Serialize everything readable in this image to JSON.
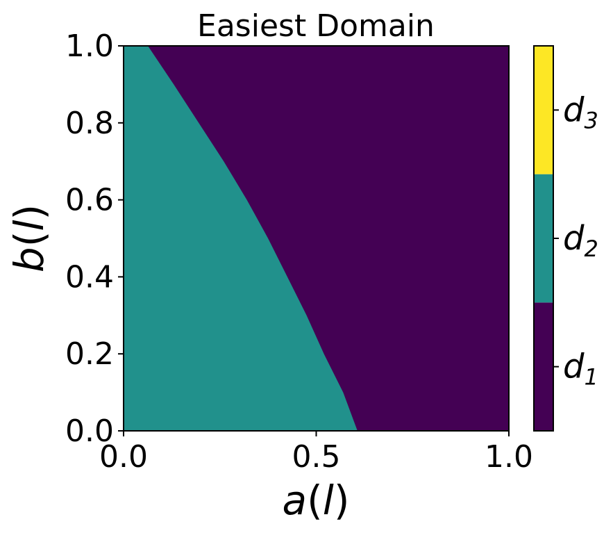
{
  "chart_data": {
    "type": "heatmap",
    "title": "Easiest Domain",
    "xlabel": "a(l)",
    "ylabel": "b(l)",
    "xlim": [
      0,
      1
    ],
    "ylim": [
      0,
      1
    ],
    "x_ticks": [
      {
        "value": 0,
        "label": "0.0"
      },
      {
        "value": 0.5,
        "label": "0.5"
      },
      {
        "value": 1,
        "label": "1.0"
      }
    ],
    "y_ticks": [
      {
        "value": 0,
        "label": "0.0"
      },
      {
        "value": 0.2,
        "label": "0.2"
      },
      {
        "value": 0.4,
        "label": "0.4"
      },
      {
        "value": 0.6,
        "label": "0.6"
      },
      {
        "value": 0.8,
        "label": "0.8"
      },
      {
        "value": 1,
        "label": "1.0"
      }
    ],
    "regions": [
      {
        "name": "d2",
        "color": "#21918c"
      },
      {
        "name": "d1",
        "color": "#440154"
      }
    ],
    "boundary": [
      {
        "x": 0.607,
        "y": 0.0
      },
      {
        "x": 0.57,
        "y": 0.1
      },
      {
        "x": 0.52,
        "y": 0.2
      },
      {
        "x": 0.475,
        "y": 0.3
      },
      {
        "x": 0.425,
        "y": 0.4
      },
      {
        "x": 0.375,
        "y": 0.5
      },
      {
        "x": 0.32,
        "y": 0.6
      },
      {
        "x": 0.26,
        "y": 0.7
      },
      {
        "x": 0.195,
        "y": 0.8
      },
      {
        "x": 0.13,
        "y": 0.9
      },
      {
        "x": 0.063,
        "y": 1.0
      }
    ],
    "colorbar": {
      "entries": [
        {
          "base": "d",
          "sub": "1",
          "color": "#440154"
        },
        {
          "base": "d",
          "sub": "2",
          "color": "#21918c"
        },
        {
          "base": "d",
          "sub": "3",
          "color": "#fde725"
        }
      ]
    }
  }
}
